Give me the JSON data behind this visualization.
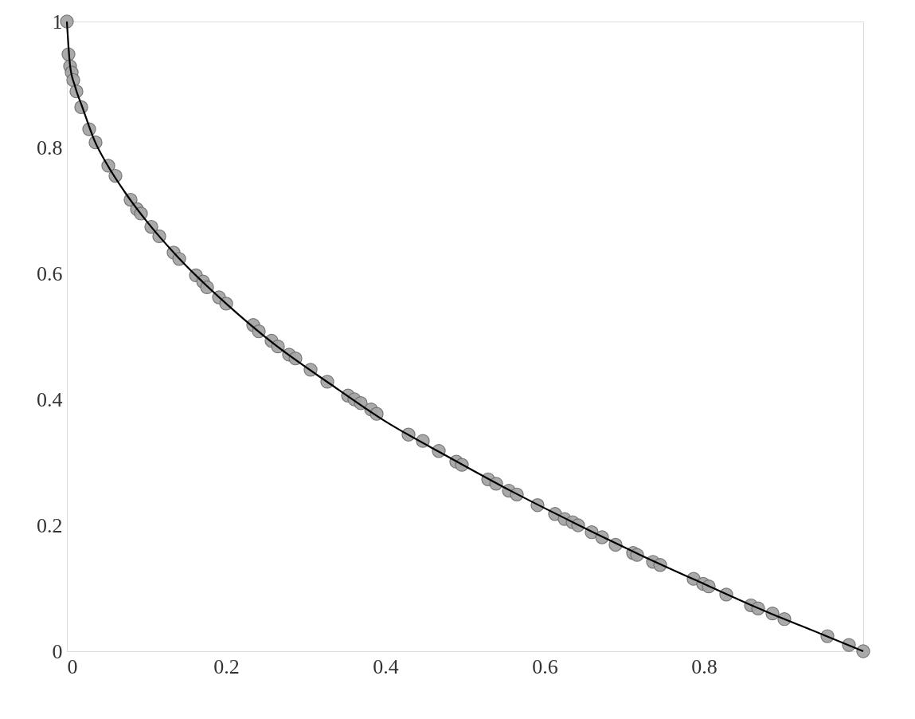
{
  "chart_data": {
    "type": "scatter",
    "xlim": [
      0,
      1
    ],
    "ylim": [
      0,
      1
    ],
    "xticks": [
      0,
      0.2,
      0.4,
      0.6,
      0.8
    ],
    "yticks": [
      0,
      0.2,
      0.4,
      0.6,
      0.8,
      1
    ],
    "grid": false,
    "series": [
      {
        "marker": "circle",
        "color": "#a6a6a6",
        "x": [
          0,
          0.002,
          0.004,
          0.006,
          0.008,
          0.012,
          0.018,
          0.028,
          0.036,
          0.052,
          0.061,
          0.08,
          0.088,
          0.093,
          0.106,
          0.116,
          0.134,
          0.141,
          0.162,
          0.171,
          0.176,
          0.191,
          0.2,
          0.234,
          0.241,
          0.257,
          0.265,
          0.279,
          0.287,
          0.306,
          0.327,
          0.353,
          0.361,
          0.369,
          0.382,
          0.389,
          0.429,
          0.447,
          0.467,
          0.489,
          0.496,
          0.529,
          0.539,
          0.555,
          0.565,
          0.591,
          0.613,
          0.625,
          0.635,
          0.642,
          0.659,
          0.672,
          0.689,
          0.711,
          0.716,
          0.736,
          0.745,
          0.787,
          0.799,
          0.806,
          0.828,
          0.859,
          0.868,
          0.886,
          0.901,
          0.955,
          0.982,
          1.0
        ],
        "values": [
          1.0,
          0.948,
          0.929,
          0.919,
          0.907,
          0.889,
          0.864,
          0.829,
          0.808,
          0.771,
          0.755,
          0.717,
          0.702,
          0.695,
          0.674,
          0.659,
          0.633,
          0.623,
          0.597,
          0.587,
          0.578,
          0.562,
          0.552,
          0.518,
          0.508,
          0.493,
          0.484,
          0.471,
          0.465,
          0.447,
          0.428,
          0.406,
          0.4,
          0.394,
          0.384,
          0.377,
          0.344,
          0.334,
          0.318,
          0.301,
          0.296,
          0.273,
          0.266,
          0.255,
          0.249,
          0.232,
          0.218,
          0.21,
          0.205,
          0.2,
          0.189,
          0.181,
          0.169,
          0.156,
          0.153,
          0.142,
          0.137,
          0.115,
          0.107,
          0.103,
          0.09,
          0.073,
          0.068,
          0.06,
          0.051,
          0.024,
          0.01,
          0.0
        ]
      },
      {
        "type": "line",
        "color": "#000000",
        "line_style": "solid",
        "x": [
          0,
          0.004,
          0.01,
          0.02,
          0.035,
          0.05,
          0.075,
          0.1,
          0.14,
          0.2,
          0.26,
          0.33,
          0.4,
          0.48,
          0.56,
          0.64,
          0.72,
          0.8,
          0.88,
          0.95,
          1.0
        ],
        "values": [
          1.0,
          0.93,
          0.898,
          0.862,
          0.81,
          0.774,
          0.725,
          0.683,
          0.625,
          0.552,
          0.488,
          0.425,
          0.365,
          0.308,
          0.253,
          0.202,
          0.153,
          0.107,
          0.062,
          0.026,
          0.0
        ]
      }
    ]
  }
}
